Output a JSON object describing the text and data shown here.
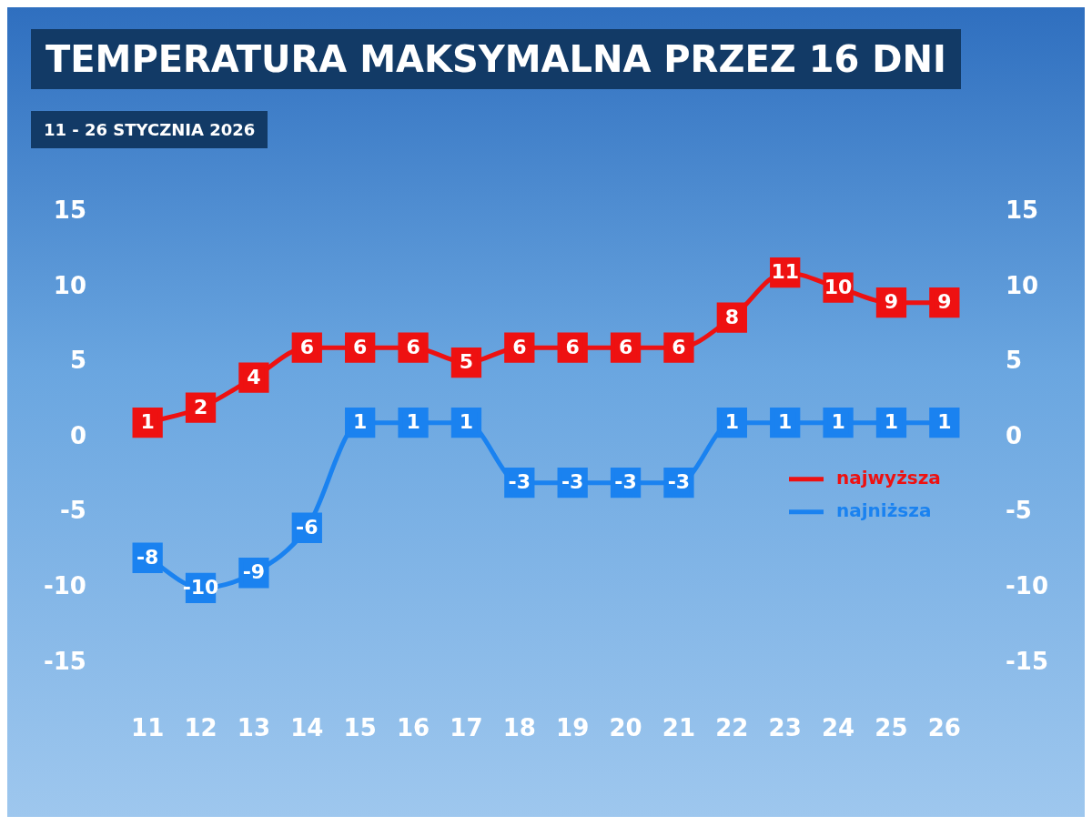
{
  "chart_data": {
    "type": "line",
    "title": "TEMPERATURA MAKSYMALNA PRZEZ 16 DNI",
    "subtitle": "11 - 26 STYCZNIA 2026",
    "categories": [
      "11",
      "12",
      "13",
      "14",
      "15",
      "16",
      "17",
      "18",
      "19",
      "20",
      "21",
      "22",
      "23",
      "24",
      "25",
      "26"
    ],
    "series": [
      {
        "name": "najwyższa",
        "color": "#ee1111",
        "values": [
          1,
          2,
          4,
          6,
          6,
          6,
          5,
          6,
          6,
          6,
          6,
          8,
          11,
          10,
          9,
          9
        ]
      },
      {
        "name": "najniższa",
        "color": "#1a82f0",
        "values": [
          -8,
          -10,
          -9,
          -6,
          1,
          1,
          1,
          -3,
          -3,
          -3,
          -3,
          1,
          1,
          1,
          1,
          1
        ]
      }
    ],
    "ylim": [
      -15,
      15
    ],
    "yticks": [
      -15,
      -10,
      -5,
      0,
      5,
      10,
      15
    ],
    "y2lim": [
      -15,
      15
    ],
    "y2ticks": [
      -15,
      -10,
      -5,
      0,
      5,
      10,
      15
    ],
    "marker": "square",
    "data_labels": true,
    "legend": "bottom right",
    "grid": false,
    "line_style": "solid"
  }
}
